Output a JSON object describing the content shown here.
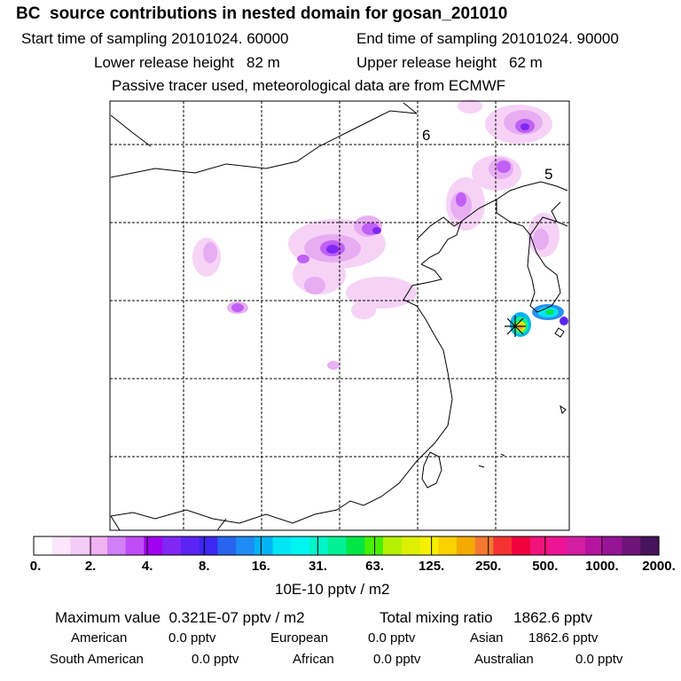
{
  "header": {
    "title": "BC  source contributions in nested domain for gosan_201010",
    "start_time": "Start time of sampling 20101024. 60000",
    "end_time": "End time of sampling 20101024. 90000",
    "lower_release": "Lower release height   82 m",
    "upper_release": "Upper release height   62 m",
    "note": "Passive tracer used, meteorological data are from ECMWF"
  },
  "map": {
    "grid_labels": [
      "6",
      "5"
    ],
    "receptor_icon": "star-marker-icon"
  },
  "colorbar": {
    "colors": [
      "#ffffff",
      "#fbe6fb",
      "#f5ccf5",
      "#f0b2f0",
      "#d07ff7",
      "#c04cf7",
      "#a000f0",
      "#7f28f5",
      "#5b24f5",
      "#3c28f0",
      "#2864f0",
      "#1e8cf5",
      "#00b4f5",
      "#00e6f5",
      "#00f5f0",
      "#00f5c8",
      "#00f096",
      "#00e646",
      "#46f000",
      "#b4f000",
      "#dcf000",
      "#f5f000",
      "#fad200",
      "#f5aa00",
      "#f57832",
      "#f53232",
      "#f0003c",
      "#f0147a",
      "#ee1496",
      "#d21ea0",
      "#b414a0",
      "#961496",
      "#6e1478",
      "#46145a"
    ],
    "ticks": [
      "0.",
      "2.",
      "4.",
      "8.",
      "16.",
      "31.",
      "63.",
      "125.",
      "250.",
      "500.",
      "1000.",
      "2000."
    ],
    "unit": "10E-10 pptv / m2"
  },
  "summary": {
    "max": "Maximum value  0.321E-07 pptv / m2",
    "total": "Total mixing ratio     1862.6 pptv",
    "regions": [
      {
        "name": "American",
        "value": "0.0 pptv"
      },
      {
        "name": "European",
        "value": "0.0 pptv"
      },
      {
        "name": "Asian",
        "value": "1862.6 pptv"
      },
      {
        "name": "South American",
        "value": "0.0 pptv"
      },
      {
        "name": "African",
        "value": "0.0 pptv"
      },
      {
        "name": "Australian",
        "value": "0.0 pptv"
      }
    ]
  }
}
